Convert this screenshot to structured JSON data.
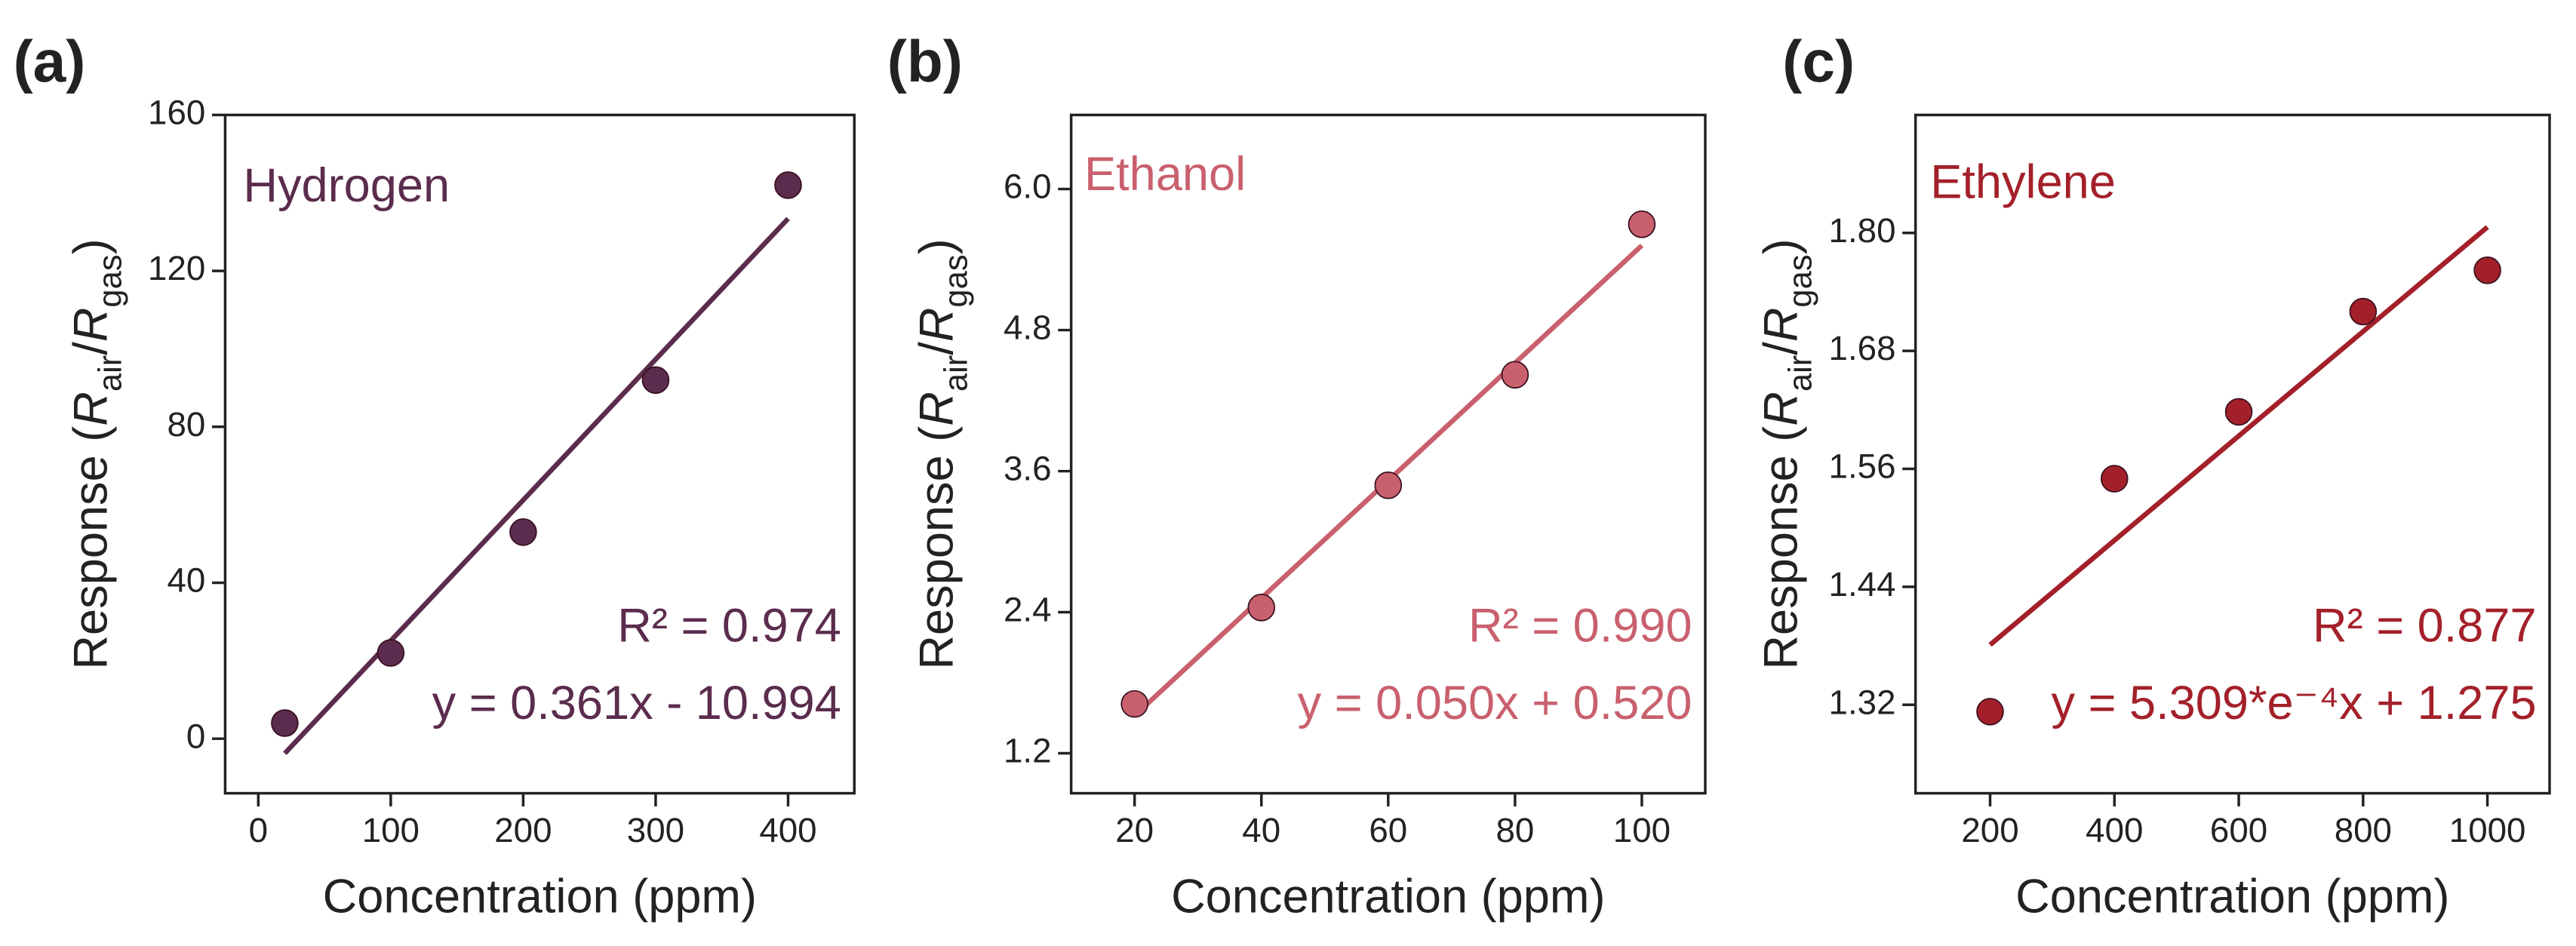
{
  "chart_data": [
    {
      "type": "scatter",
      "panel_label": "(a)",
      "annotation": "Hydrogen",
      "r2_label": "R² = 0.974",
      "equation": "y = 0.361x - 10.994",
      "xlabel": "Concentration (ppm)",
      "ylabel": [
        "Response (",
        "R",
        "air",
        "/",
        "R",
        "gas",
        ")"
      ],
      "x": [
        20,
        100,
        200,
        300,
        400
      ],
      "values": [
        4,
        22,
        53,
        92,
        142
      ],
      "color": "#5b2c4d",
      "fit": {
        "x": [
          20,
          400
        ],
        "values": [
          -3.774,
          133.406
        ]
      },
      "xlim": [
        -25,
        450
      ],
      "ylim": [
        -14,
        160
      ],
      "xticks": [
        0,
        100,
        200,
        300,
        400
      ],
      "yticks": [
        0,
        40,
        80,
        120,
        160
      ]
    },
    {
      "type": "scatter",
      "panel_label": "(b)",
      "annotation": "Ethanol",
      "r2_label": "R² = 0.990",
      "equation": "y = 0.050x + 0.520",
      "xlabel": "Concentration (ppm)",
      "ylabel": [
        "Response (",
        "R",
        "air",
        "/",
        "R",
        "gas",
        ")"
      ],
      "x": [
        20,
        40,
        60,
        80,
        100
      ],
      "values": [
        1.62,
        2.44,
        3.48,
        4.42,
        5.7
      ],
      "color": "#c9606e",
      "fit": {
        "x": [
          20,
          100
        ],
        "values": [
          1.52,
          5.52
        ]
      },
      "xlim": [
        10,
        110
      ],
      "ylim": [
        0.86,
        6.63
      ],
      "xticks": [
        20,
        40,
        60,
        80,
        100
      ],
      "yticks": [
        1.2,
        2.4,
        3.6,
        4.8,
        {
          "value": 6,
          "label": "6.0"
        }
      ]
    },
    {
      "type": "scatter",
      "panel_label": "(c)",
      "annotation": "Ethylene",
      "r2_label": "R² = 0.877",
      "equation": "y = 5.309*e⁻⁴x + 1.275",
      "xlabel": "Concentration (ppm)",
      "ylabel": [
        "Response (",
        "R",
        "air",
        "/",
        "R",
        "gas",
        ")"
      ],
      "x": [
        200,
        400,
        600,
        800,
        1000
      ],
      "values": [
        1.313,
        1.55,
        1.618,
        1.72,
        1.762
      ],
      "color": "#a3202a",
      "fit": {
        "x": [
          200,
          1000
        ],
        "values": [
          1.381,
          1.806
        ]
      },
      "xlim": [
        80,
        1100
      ],
      "ylim": [
        1.23,
        1.92
      ],
      "xticks": [
        200,
        400,
        600,
        800,
        1000
      ],
      "yticks": [
        1.32,
        1.44,
        1.56,
        1.68,
        {
          "value": 1.8,
          "label": "1.80"
        }
      ]
    }
  ]
}
